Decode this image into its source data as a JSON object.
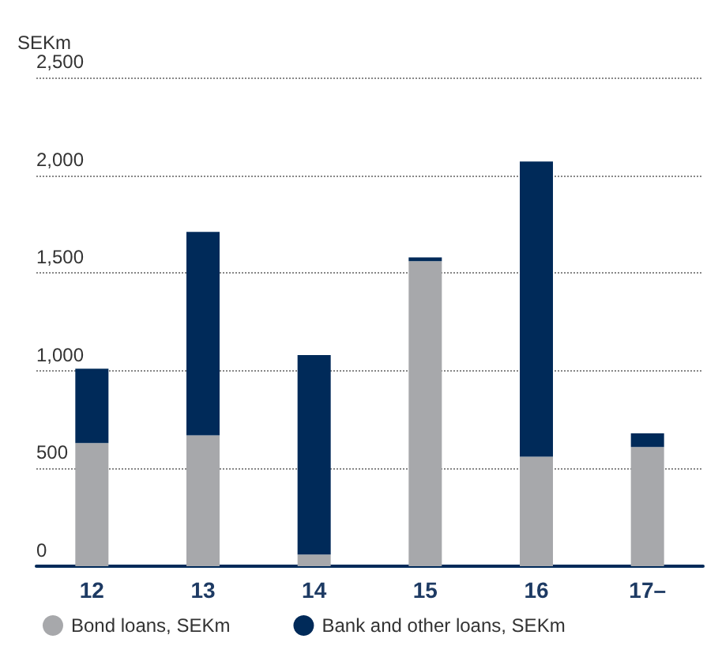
{
  "chart_data": {
    "type": "bar",
    "stacked": true,
    "ylabel": "SEKm",
    "categories": [
      "12",
      "13",
      "14",
      "15",
      "16",
      "17–"
    ],
    "series": [
      {
        "name": "Bond loans, SEKm",
        "color": "#a7a8ab",
        "values": [
          630,
          670,
          60,
          1560,
          560,
          610
        ]
      },
      {
        "name": "Bank and other loans, SEKm",
        "color": "#002a59",
        "values": [
          380,
          1040,
          1020,
          20,
          1510,
          70
        ]
      }
    ],
    "ylim": [
      0,
      2500
    ],
    "yticks": [
      0,
      500,
      {
        "value": 1000,
        "label": "1,000"
      },
      {
        "value": 1500,
        "label": "1,500"
      },
      {
        "value": 2000,
        "label": "2,000"
      },
      {
        "value": 2500,
        "label": "2,500"
      }
    ],
    "grid": "y",
    "legend": "bottom"
  }
}
